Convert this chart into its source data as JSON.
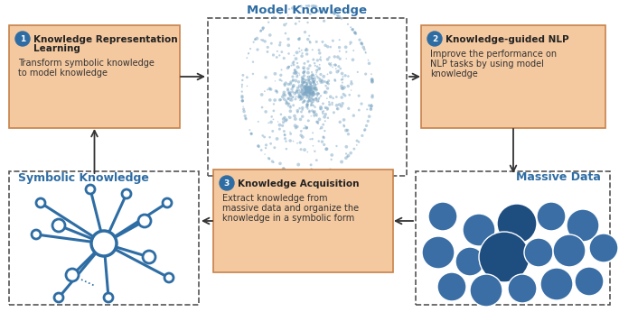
{
  "bg_color": "#ffffff",
  "scatter_color": "#7da7c4",
  "box_fill": "#f5c9a0",
  "box_edge": "#c8824a",
  "dashed_box_color": "#555555",
  "blue_color": "#2e6da4",
  "arrow_color": "#333333",
  "title_color": "#2e6da4",
  "circle_num_bg": "#2e6da4",
  "circle_num_fg": "#ffffff",
  "model_knowledge_label": "Model Knowledge",
  "symbolic_knowledge_label": "Symbolic Knowledge",
  "massive_data_label": "Massive Data",
  "box1_title": "Knowledge Representation\nLearning",
  "box1_text": "Transform symbolic knowledge\nto model knowledge",
  "box2_title": "Knowledge-guided NLP",
  "box2_text": "Improve the performance on\nNLP tasks by using model\nknowledge",
  "box3_title": "Knowledge Acquisition",
  "box3_text": "Extract knowledge from\nmassive data and organize the\nknowledge in a symbolic form"
}
